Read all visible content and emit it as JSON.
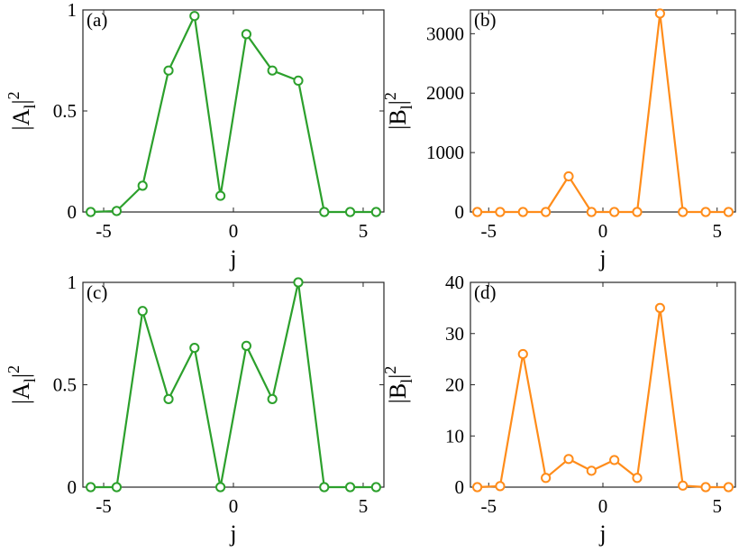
{
  "chart_data": [
    {
      "id": "a",
      "type": "line",
      "panel_label": "(a)",
      "xlabel": "j",
      "ylabel_base": "|A",
      "ylabel_sub": "l",
      "ylabel_close": "|",
      "ylabel_sup": "2",
      "xlim": [
        -5.8,
        5.8
      ],
      "ylim": [
        0,
        1
      ],
      "xticks": [
        -5,
        0,
        5
      ],
      "xtick_labels": [
        "-5",
        "0",
        "5"
      ],
      "yticks": [
        0,
        0.5,
        1
      ],
      "ytick_labels": [
        "0",
        "0.5",
        "1"
      ],
      "color": "#2ca02c",
      "x": [
        -5.5,
        -4.5,
        -3.5,
        -2.5,
        -1.5,
        -0.5,
        0.5,
        1.5,
        2.5,
        3.5,
        4.5,
        5.5
      ],
      "y": [
        0,
        0.005,
        0.13,
        0.7,
        0.97,
        0.08,
        0.88,
        0.7,
        0.65,
        0,
        0,
        0
      ]
    },
    {
      "id": "b",
      "type": "line",
      "panel_label": "(b)",
      "xlabel": "j",
      "ylabel_base": "|B",
      "ylabel_sub": "l",
      "ylabel_close": "|",
      "ylabel_sup": "2",
      "xlim": [
        -5.8,
        5.8
      ],
      "ylim": [
        0,
        3400
      ],
      "xticks": [
        -5,
        0,
        5
      ],
      "xtick_labels": [
        "-5",
        "0",
        "5"
      ],
      "yticks": [
        0,
        1000,
        2000,
        3000
      ],
      "ytick_labels": [
        "0",
        "1000",
        "2000",
        "3000"
      ],
      "color": "#ff8c1a",
      "x": [
        -5.5,
        -4.5,
        -3.5,
        -2.5,
        -1.5,
        -0.5,
        0.5,
        1.5,
        2.5,
        3.5,
        4.5,
        5.5
      ],
      "y": [
        0,
        0,
        0,
        0,
        600,
        0,
        0,
        0,
        3340,
        0,
        0,
        0
      ]
    },
    {
      "id": "c",
      "type": "line",
      "panel_label": "(c)",
      "xlabel": "j",
      "ylabel_base": "|A",
      "ylabel_sub": "l",
      "ylabel_close": "|",
      "ylabel_sup": "2",
      "xlim": [
        -5.8,
        5.8
      ],
      "ylim": [
        0,
        1
      ],
      "xticks": [
        -5,
        0,
        5
      ],
      "xtick_labels": [
        "-5",
        "0",
        "5"
      ],
      "yticks": [
        0,
        0.5,
        1
      ],
      "ytick_labels": [
        "0",
        "0.5",
        "1"
      ],
      "color": "#2ca02c",
      "x": [
        -5.5,
        -4.5,
        -3.5,
        -2.5,
        -1.5,
        -0.5,
        0.5,
        1.5,
        2.5,
        3.5,
        4.5,
        5.5
      ],
      "y": [
        0,
        0,
        0.86,
        0.43,
        0.68,
        0,
        0.69,
        0.43,
        1.0,
        0,
        0,
        0
      ]
    },
    {
      "id": "d",
      "type": "line",
      "panel_label": "(d)",
      "xlabel": "j",
      "ylabel_base": "|B",
      "ylabel_sub": "l",
      "ylabel_close": "|",
      "ylabel_sup": "2",
      "xlim": [
        -5.8,
        5.8
      ],
      "ylim": [
        0,
        40
      ],
      "xticks": [
        -5,
        0,
        5
      ],
      "xtick_labels": [
        "-5",
        "0",
        "5"
      ],
      "yticks": [
        0,
        10,
        20,
        30,
        40
      ],
      "ytick_labels": [
        "0",
        "10",
        "20",
        "30",
        "40"
      ],
      "color": "#ff8c1a",
      "x": [
        -5.5,
        -4.5,
        -3.5,
        -2.5,
        -1.5,
        -0.5,
        0.5,
        1.5,
        2.5,
        3.5,
        4.5,
        5.5
      ],
      "y": [
        0,
        0.2,
        26,
        1.8,
        5.5,
        3.2,
        5.3,
        1.8,
        35,
        0.3,
        0,
        0
      ]
    }
  ]
}
